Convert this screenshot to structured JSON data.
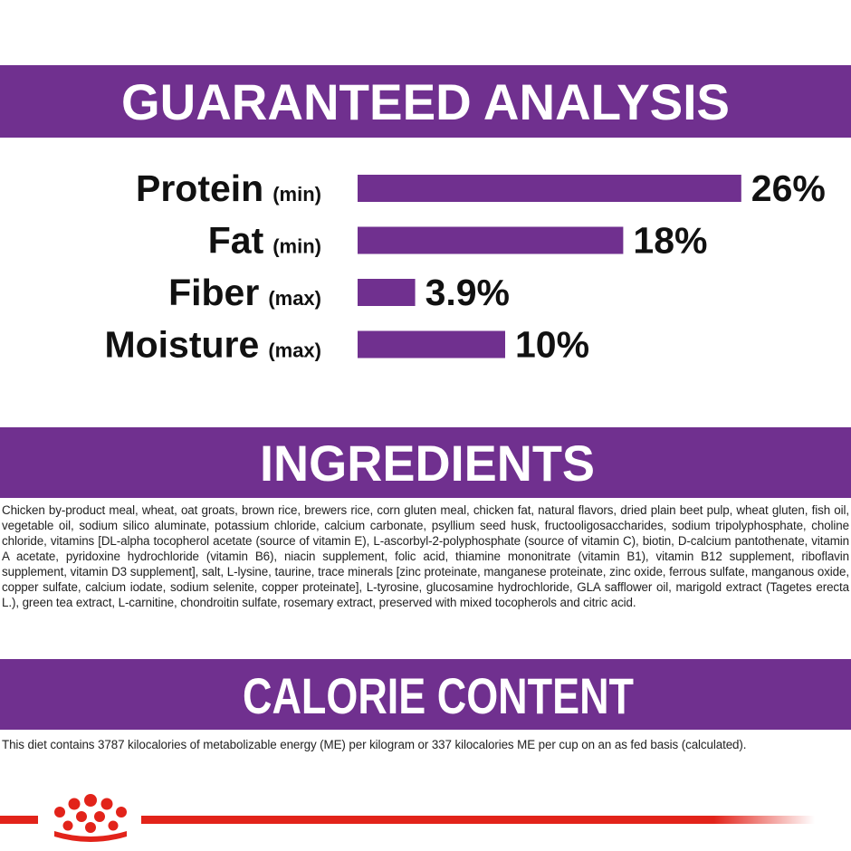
{
  "chart_data": {
    "type": "bar",
    "title": "GUARANTEED ANALYSIS",
    "categories": [
      "Protein",
      "Fat",
      "Fiber",
      "Moisture"
    ],
    "qualifiers": [
      "(min)",
      "(min)",
      "(max)",
      "(max)"
    ],
    "values": [
      26,
      18,
      3.9,
      10
    ],
    "value_labels": [
      "26%",
      "18%",
      "3.9%",
      "10%"
    ],
    "color": "#70308f"
  },
  "ingredients": {
    "title": "INGREDIENTS",
    "text": "Chicken by-product meal, wheat, oat groats, brown rice, brewers rice, corn gluten meal, chicken fat, natural flavors, dried plain beet pulp, wheat gluten, fish oil, vegetable oil, sodium silico aluminate, potassium chloride, calcium carbonate, psyllium seed husk, fructooligosaccharides, sodium tripolyphosphate, choline chloride, vitamins [DL-alpha tocopherol acetate (source of vitamin E), L-ascorbyl-2-polyphosphate (source of vitamin C), biotin, D-calcium pantothenate, vitamin A acetate, pyridoxine hydrochloride (vitamin B6), niacin supplement, folic acid, thiamine mononitrate (vitamin B1), vitamin B12 supplement, riboflavin supplement, vitamin D3 supplement], salt, L-lysine, taurine, trace minerals [zinc proteinate, manganese proteinate, zinc oxide, ferrous sulfate, manganous oxide, copper sulfate, calcium iodate, sodium selenite, copper proteinate], L-tyrosine, glucosamine hydrochloride, GLA safflower oil, marigold extract (Tagetes erecta L.), green tea extract, L-carnitine, chondroitin sulfate, rosemary extract, preserved with mixed tocopherols and citric acid."
  },
  "calorie_content": {
    "title": "CALORIE CONTENT",
    "text": "This diet contains 3787 kilocalories of metabolizable energy (ME) per kilogram or 337 kilocalories ME per cup on an as fed basis (calculated)."
  }
}
